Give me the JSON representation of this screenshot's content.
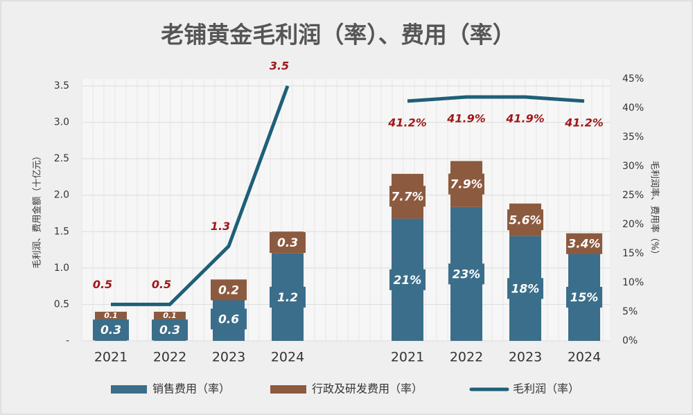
{
  "chart_data": [
    {
      "type": "bar",
      "title": "老铺黄金毛利润（率）、费用（率）",
      "ylabel": "毛利润、费用金额（十亿元）",
      "categories": [
        "2021",
        "2022",
        "2023",
        "2024"
      ],
      "ylim": [
        0,
        3.5
      ],
      "yticks": [
        {
          "value": 0,
          "label": "-"
        },
        0.5,
        {
          "value": 1,
          "label": "1.0"
        },
        1.5,
        {
          "value": 2,
          "label": "2.0"
        },
        2.5,
        {
          "value": 3,
          "label": "3.0"
        },
        3.5
      ],
      "grid": true,
      "series": [
        {
          "name": "销售费用（率）",
          "color": "#3b6e8a",
          "values": [
            0.3,
            0.3,
            0.6,
            1.2
          ]
        },
        {
          "name": "行政及研发费用（率）",
          "color": "#8c5a3e",
          "values": [
            0.1,
            0.1,
            0.2,
            0.3
          ]
        },
        {
          "name": "毛利润（率）",
          "type": "line",
          "color": "#1f5f78",
          "values": [
            0.5,
            0.5,
            1.3,
            3.5
          ]
        }
      ]
    },
    {
      "type": "bar",
      "ylabel": "毛利润率、费用率（%）",
      "categories": [
        "2021",
        "2022",
        "2023",
        "2024"
      ],
      "ylim": [
        0,
        45
      ],
      "yticks": [
        {
          "value": 0,
          "label": "0%"
        },
        {
          "value": 5,
          "label": "5%"
        },
        {
          "value": 10,
          "label": "10%"
        },
        {
          "value": 15,
          "label": "15%"
        },
        {
          "value": 20,
          "label": "20%"
        },
        {
          "value": 25,
          "label": "25%"
        },
        {
          "value": 30,
          "label": "30%"
        },
        {
          "value": 35,
          "label": "35%"
        },
        {
          "value": 40,
          "label": "40%"
        },
        {
          "value": 45,
          "label": "45%"
        }
      ],
      "series": [
        {
          "color": "#3b6e8a",
          "values": [
            21,
            23,
            18,
            15
          ],
          "value_labels": [
            "21%",
            "23%",
            "18%",
            "15%"
          ]
        },
        {
          "color": "#8c5a3e",
          "values": [
            7.7,
            7.9,
            5.6,
            3.4
          ],
          "value_labels": [
            "7.7%",
            "7.9%",
            "5.6%",
            "3.4%"
          ]
        },
        {
          "type": "line",
          "color": "#1f5f78",
          "values": [
            41.2,
            41.9,
            41.9,
            41.2
          ],
          "value_labels": [
            "41.2%",
            "41.9%",
            "41.9%",
            "41.2%"
          ]
        }
      ]
    }
  ]
}
